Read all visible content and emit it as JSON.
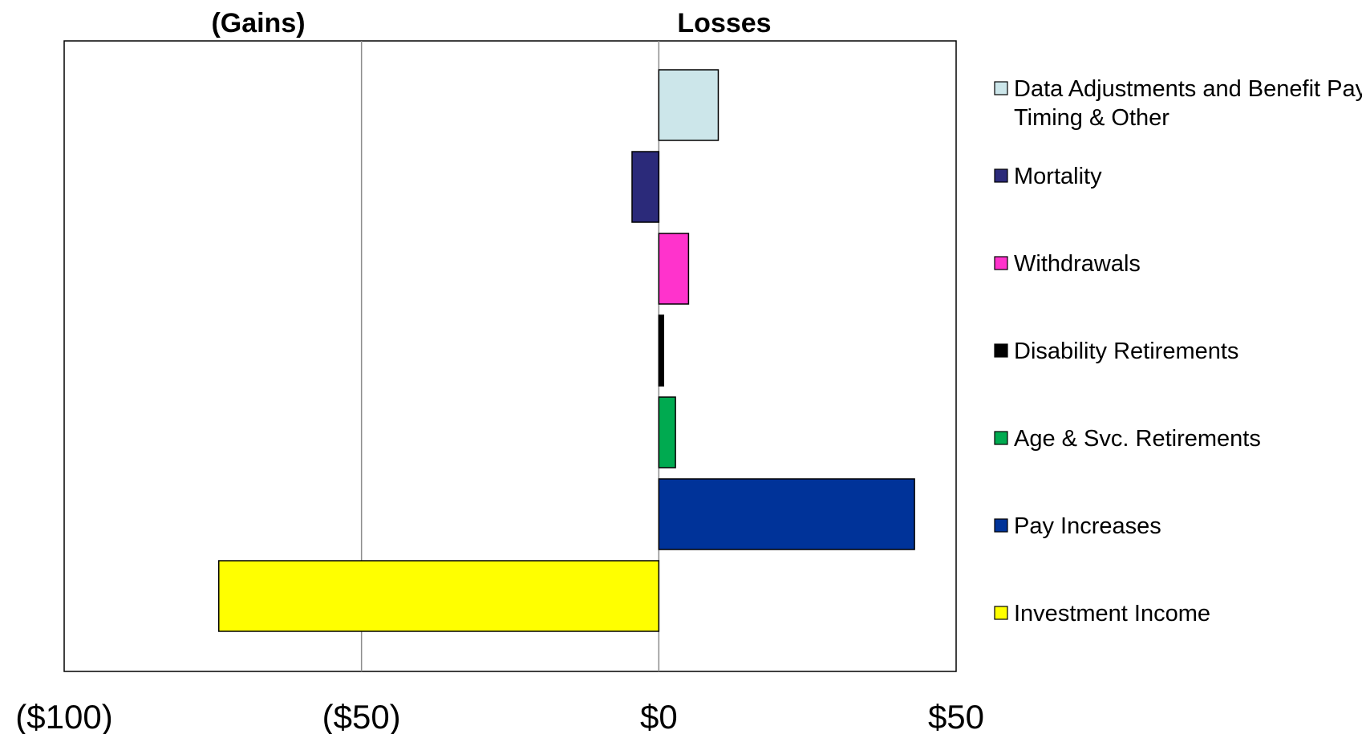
{
  "chart_data": {
    "type": "bar",
    "orientation": "horizontal",
    "header_left": "(Gains)",
    "header_right": "Losses",
    "xlim": [
      -100,
      50
    ],
    "x_ticks": [
      {
        "value": -100,
        "label": "($100)"
      },
      {
        "value": -50,
        "label": "($50)"
      },
      {
        "value": 0,
        "label": "$0"
      },
      {
        "value": 50,
        "label": "$50"
      }
    ],
    "gridlines_at": [
      -50,
      0
    ],
    "legend_position": "right",
    "series": [
      {
        "name": "Data Adjustments and Benefit Payment Timing & Other",
        "value": 10,
        "color": "#CCE6EA"
      },
      {
        "name": "Mortality",
        "value": -4.5,
        "color": "#2B2A7A"
      },
      {
        "name": "Withdrawals",
        "value": 5,
        "color": "#FF33CC"
      },
      {
        "name": "Disability Retirements",
        "value": 0.8,
        "color": "#000000"
      },
      {
        "name": "Age & Svc. Retirements",
        "value": 2.8,
        "color": "#00AA50"
      },
      {
        "name": "Pay Increases",
        "value": 43,
        "color": "#003399"
      },
      {
        "name": "Investment Income",
        "value": -74,
        "color": "#FFFF00"
      }
    ]
  }
}
